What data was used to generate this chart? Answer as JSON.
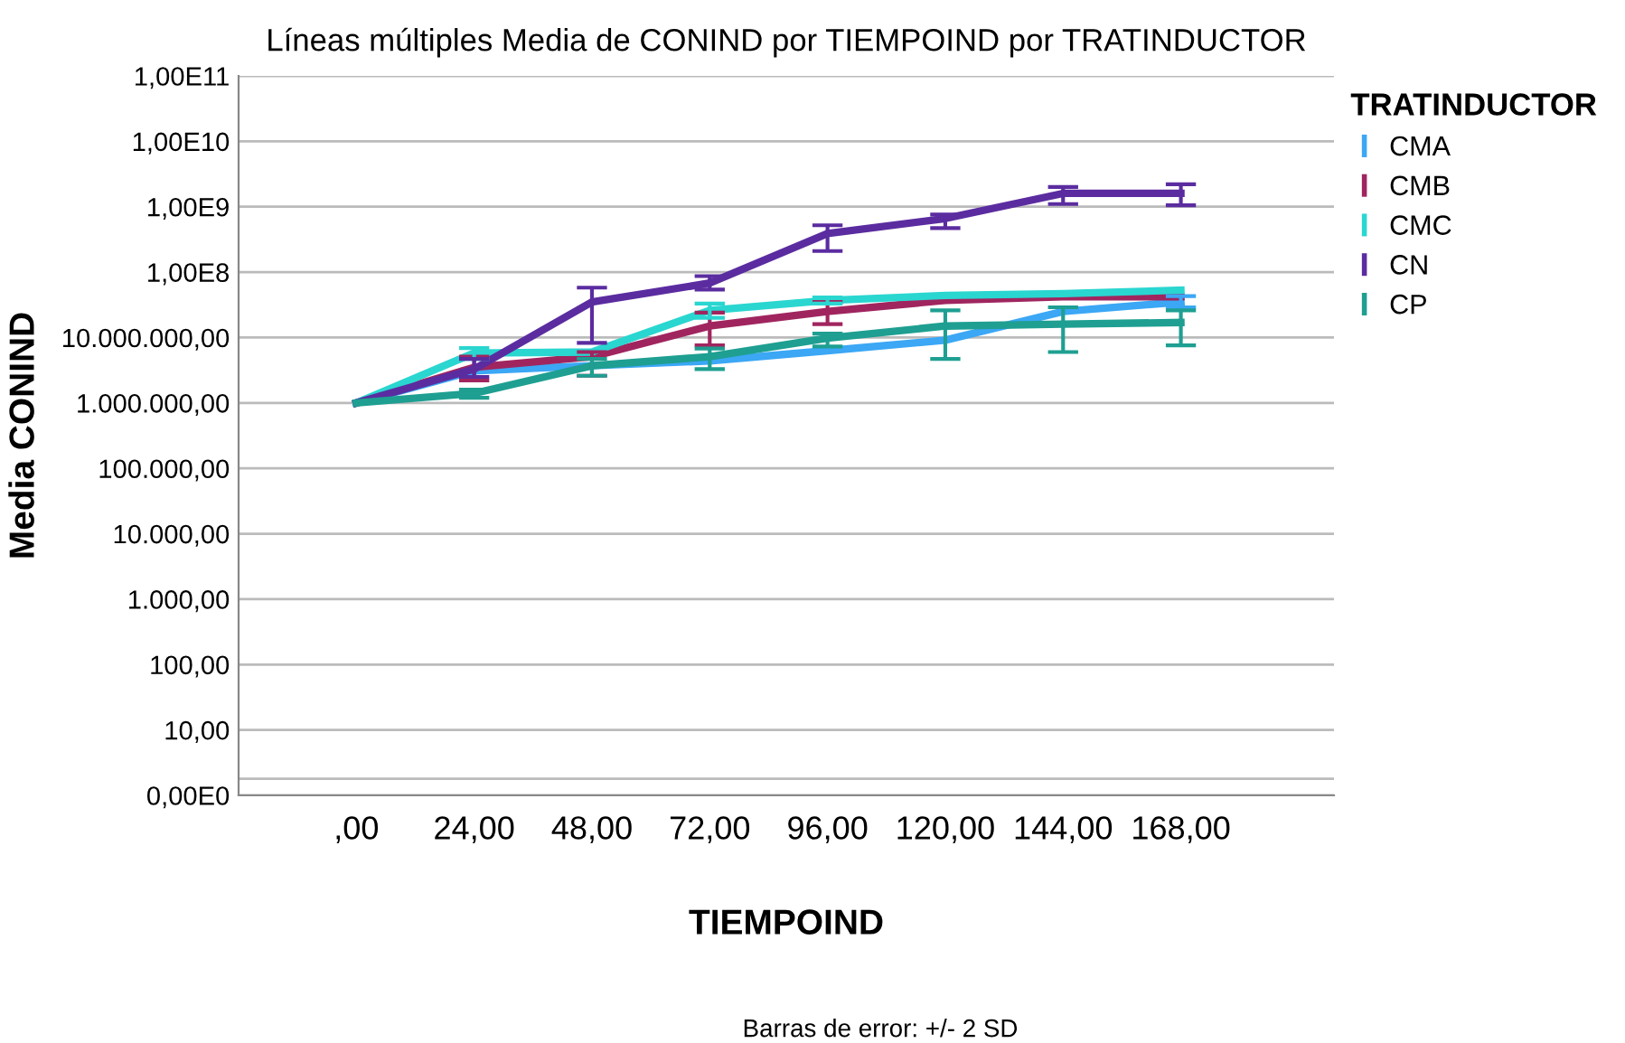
{
  "chart_data": {
    "type": "line",
    "title": "Líneas múltiples Media de CONIND por TIEMPOIND por TRATINDUCTOR",
    "xlabel": "TIEMPOIND",
    "ylabel": "Media CONIND",
    "legend_title": "TRATINDUCTOR",
    "legend": "right",
    "log": "y",
    "grid": "y",
    "marker": "none",
    "line_style": "solid",
    "categories": [
      ",00",
      "24,00",
      "48,00",
      "72,00",
      "96,00",
      "120,00",
      "144,00",
      "168,00"
    ],
    "ylim": [
      1,
      100000000000.0
    ],
    "yticks": [
      {
        "value": 1,
        "label": "0,00E0"
      },
      {
        "value": 1.8,
        "label": null
      },
      {
        "value": 10,
        "label": "10,00"
      },
      {
        "value": 100,
        "label": "100,00"
      },
      {
        "value": 1000,
        "label": "1.000,00"
      },
      {
        "value": 10000,
        "label": "10.000,00"
      },
      {
        "value": 100000,
        "label": "100.000,00"
      },
      {
        "value": 1000000,
        "label": "1.000.000,00"
      },
      {
        "value": 10000000,
        "label": "10.000.000,00"
      },
      {
        "value": 100000000,
        "label": "1,00E8"
      },
      {
        "value": 1000000000,
        "label": "1,00E9"
      },
      {
        "value": 10000000000,
        "label": "1,00E10"
      },
      {
        "value": 100000000000,
        "label": "1,00E11"
      }
    ],
    "series": [
      {
        "name": "CMA",
        "color": "#3ba7f5",
        "values": [
          1000000,
          3100000,
          3700000,
          4400000,
          6300000,
          9100000,
          25000000,
          35000000
        ],
        "errors": [
          null,
          null,
          null,
          null,
          null,
          null,
          null,
          [
            29000000,
            43000000
          ]
        ]
      },
      {
        "name": "CMB",
        "color": "#a0255f",
        "values": [
          1000000,
          3500000,
          5100000,
          15000000,
          25000000,
          37000000,
          42000000,
          42000000
        ],
        "errors": [
          null,
          [
            2200000,
            5100000
          ],
          [
            2600000,
            6000000
          ],
          [
            7600000,
            24000000
          ],
          [
            16000000,
            35000000
          ],
          null,
          null,
          null
        ]
      },
      {
        "name": "CMC",
        "color": "#2ad6d0",
        "values": [
          1000000,
          5800000,
          6000000,
          26000000,
          37000000,
          44000000,
          47000000,
          53000000
        ],
        "errors": [
          null,
          [
            4700000,
            6900000
          ],
          null,
          [
            20000000,
            33000000
          ],
          [
            33000000,
            41000000
          ],
          null,
          null,
          null
        ]
      },
      {
        "name": "CN",
        "color": "#5b2ca0",
        "values": [
          1000000,
          3300000,
          35000000,
          68000000,
          390000000,
          660000000,
          1600000000,
          1600000000
        ],
        "errors": [
          null,
          [
            2500000,
            4700000
          ],
          [
            8300000,
            58000000
          ],
          [
            54000000,
            87000000
          ],
          [
            210000000,
            520000000
          ],
          [
            470000000,
            760000000
          ],
          [
            1100000000,
            2000000000
          ],
          [
            1050000000,
            2200000000
          ]
        ]
      },
      {
        "name": "CP",
        "color": "#1e9f91",
        "values": [
          1000000,
          1400000,
          3700000,
          5100000,
          9800000,
          15000000,
          16000000,
          17000000
        ],
        "errors": [
          null,
          [
            1200000,
            1600000
          ],
          [
            2600000,
            4700000
          ],
          [
            3300000,
            6800000
          ],
          [
            7300000,
            11500000
          ],
          [
            4700000,
            26000000
          ],
          [
            6000000,
            29000000
          ],
          [
            7600000,
            26000000
          ]
        ]
      }
    ],
    "annotations": [
      "Barras de error: +/- 2 SD"
    ]
  }
}
